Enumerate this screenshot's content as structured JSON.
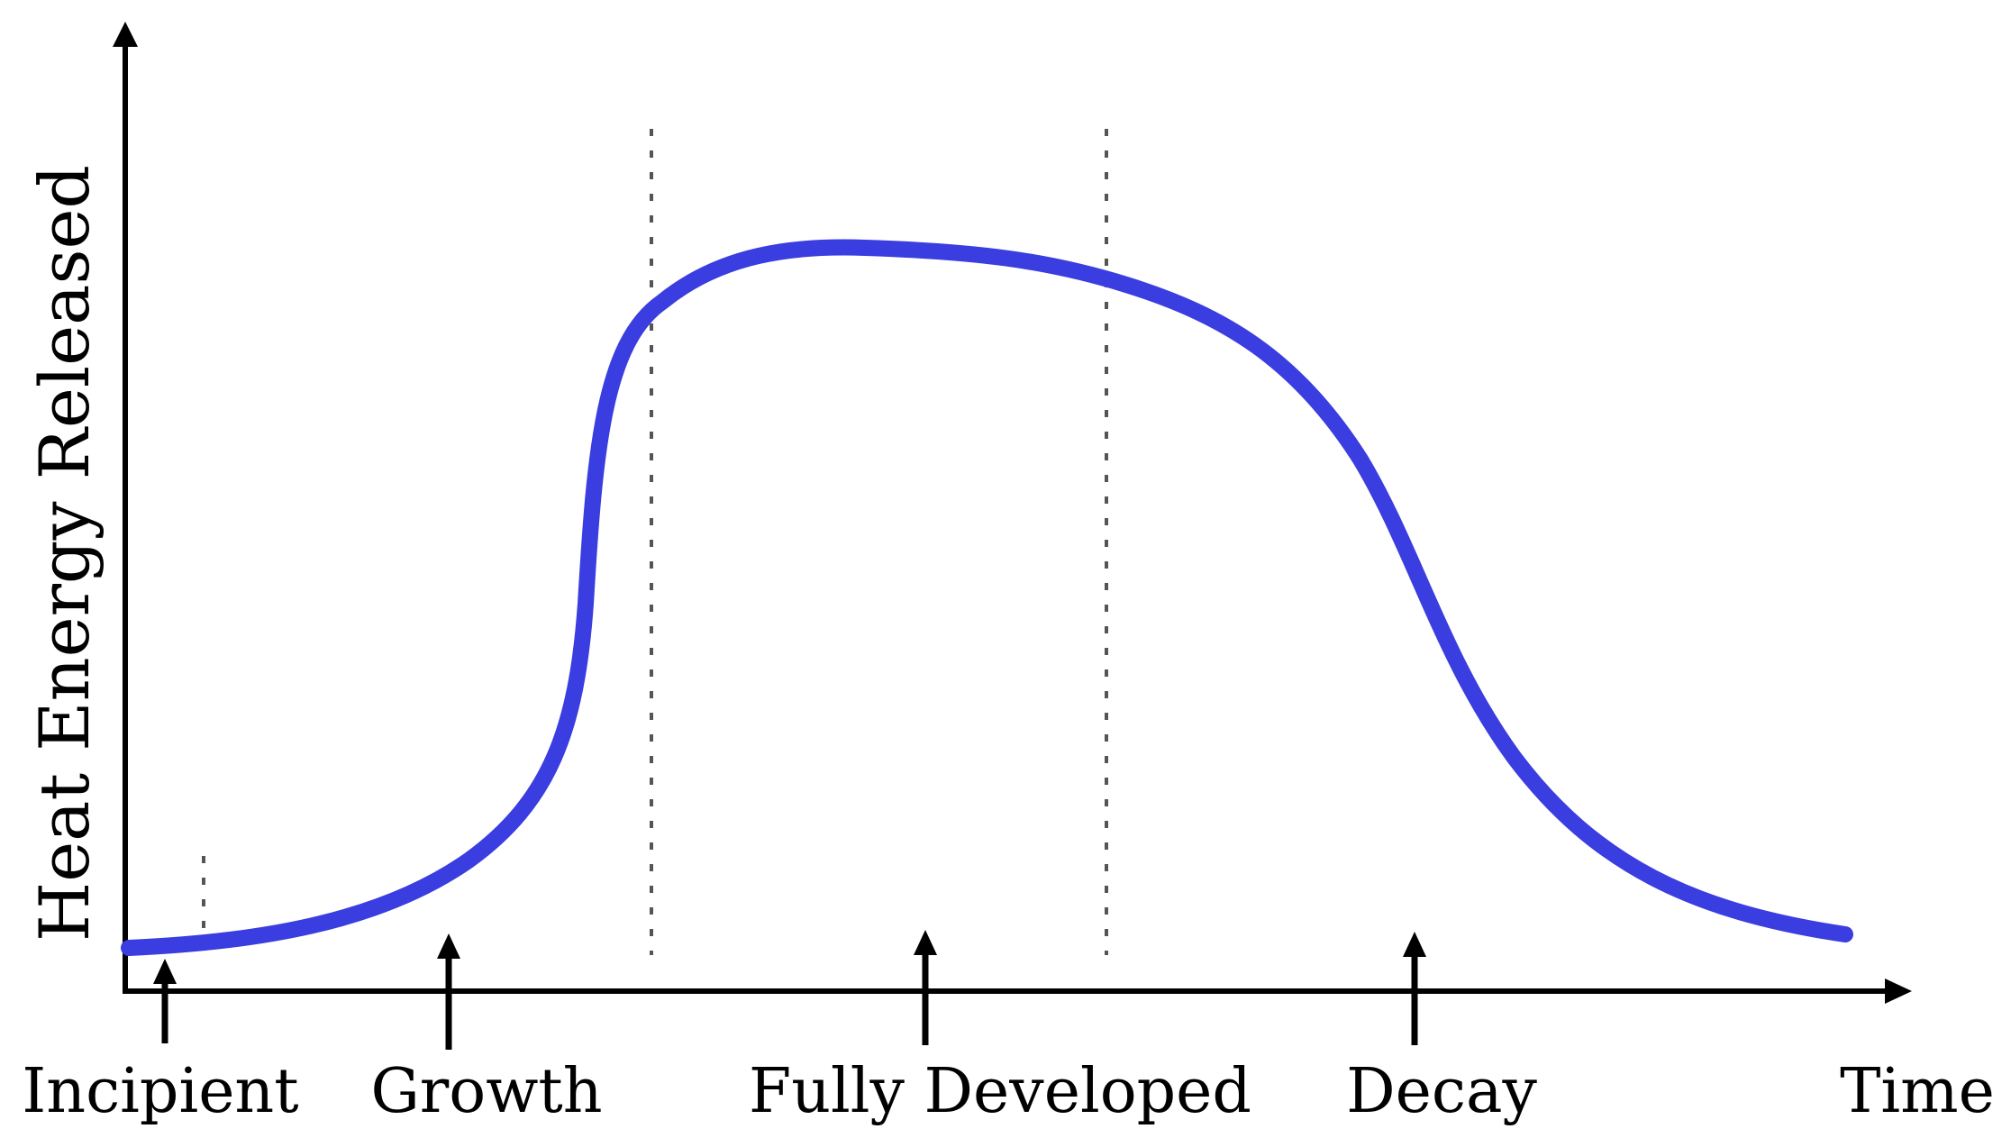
{
  "axes": {
    "y_label": "Heat Energy Released",
    "x_label": "Time"
  },
  "phases": [
    {
      "id": "incipient",
      "label": "Incipient"
    },
    {
      "id": "growth",
      "label": "Growth"
    },
    {
      "id": "fully-developed",
      "label": "Fully Developed"
    },
    {
      "id": "decay",
      "label": "Decay"
    }
  ],
  "colors": {
    "curve": "#3a3ddf",
    "axis": "#000000",
    "divider": "#555555"
  }
}
